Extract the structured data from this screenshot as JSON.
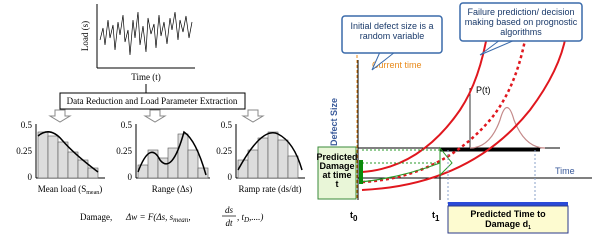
{
  "load_plot": {
    "y_label": "Load (s)",
    "x_label": "Time (t)"
  },
  "step": "Data Reduction and Load Parameter Extraction",
  "histograms": [
    {
      "yticks": [
        "0.5",
        "0.25",
        "0"
      ],
      "label": "Mean load (S",
      "label_sub": "mean",
      "label_end": ")"
    },
    {
      "yticks": [
        "0.5",
        "0.25",
        "0"
      ],
      "label": "Range (Δs)"
    },
    {
      "yticks": [
        "0.5",
        "0.25",
        "0"
      ],
      "label": "Ramp rate (ds/dt)"
    }
  ],
  "formula": {
    "prefix": "Damage,",
    "start": "Δw = F(Δs, s",
    "sub1": "mean",
    "comma": ",",
    "num": "ds",
    "den": "dt",
    "mid": ", t",
    "sub2": "D",
    "end": ",....)"
  },
  "prognosis": {
    "callout_initial": "Initial defect size is a random variable",
    "callout_failure": "Failure prediction/ decision making based on prognostic algorithms",
    "current_time": "Current time",
    "y_label": "Defect Size",
    "pdf_label": "P(t)",
    "predicted_damage": "Predicted Damage at time t",
    "x_label": "Time",
    "t0": "t",
    "t0_sub": "0",
    "t1": "t",
    "t1_sub": "1",
    "predicted_time": "Predicted Time to Damage d",
    "predicted_time_sub": "1"
  }
}
